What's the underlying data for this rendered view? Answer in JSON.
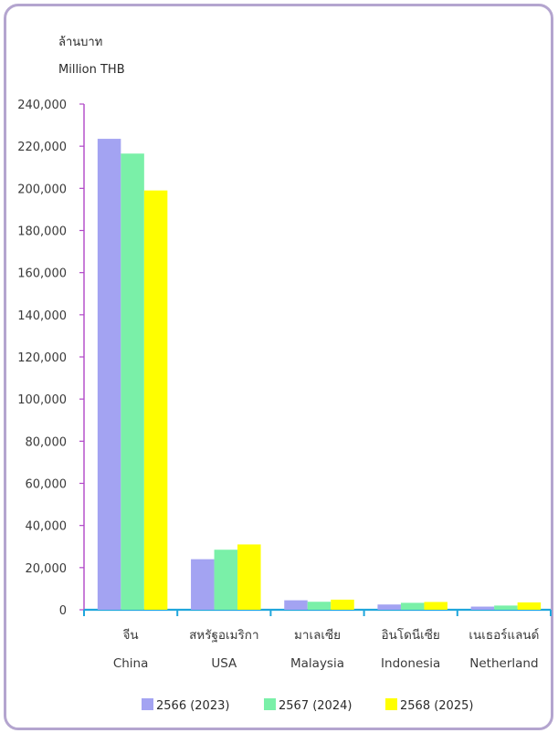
{
  "chart_data": {
    "type": "bar",
    "ylabel_lines": [
      "ล้านบาท",
      "Million THB"
    ],
    "ylim": [
      0,
      240000
    ],
    "ytick_step": 20000,
    "ytick_labels": [
      "0",
      "20,000",
      "40,000",
      "60,000",
      "80,000",
      "100,000",
      "120,000",
      "140,000",
      "160,000",
      "180,000",
      "200,000",
      "220,000",
      "240,000"
    ],
    "categories": [
      {
        "th": "จีน",
        "en": "China"
      },
      {
        "th": "สหรัฐอเมริกา",
        "en": "USA"
      },
      {
        "th": "มาเลเซีย",
        "en": "Malaysia"
      },
      {
        "th": "อินโดนีเซีย",
        "en": "Indonesia"
      },
      {
        "th": "เนเธอร์แลนด์",
        "en": "Netherland"
      }
    ],
    "series": [
      {
        "name": "2566 (2023)",
        "color": "#a3a3f2",
        "values": [
          223500,
          24000,
          4500,
          2500,
          1500
        ]
      },
      {
        "name": "2567 (2024)",
        "color": "#7af0a8",
        "values": [
          216500,
          28500,
          3800,
          3300,
          2000
        ]
      },
      {
        "name": "2568 (2025)",
        "color": "#ffff00",
        "values": [
          199000,
          31000,
          4800,
          3700,
          3500
        ]
      }
    ],
    "grid": false,
    "legend_position": "bottom"
  }
}
